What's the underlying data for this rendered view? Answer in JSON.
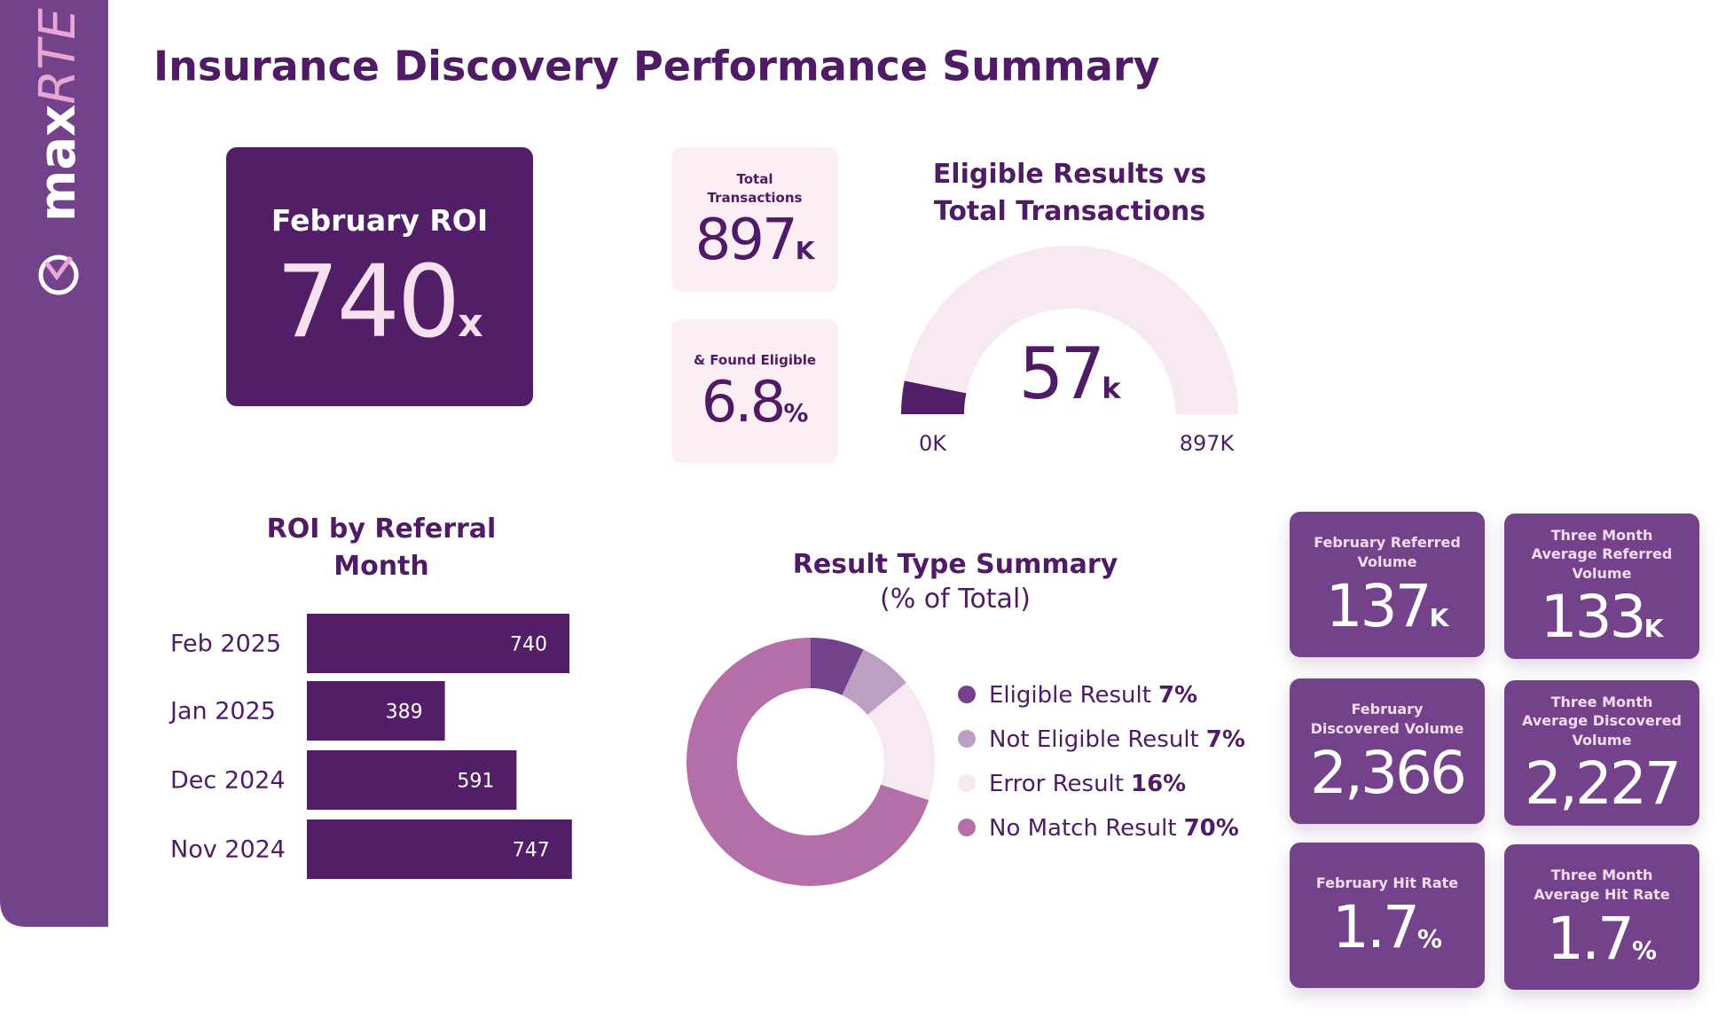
{
  "logo": {
    "brand": "max",
    "product": "RTE"
  },
  "title": "Insurance Discovery Performance Summary",
  "kpi_cards": [
    {
      "label": "February ROI",
      "value": "740",
      "unit": "x"
    },
    {
      "label": "Total Transactions",
      "value": "897",
      "unit": "K"
    },
    {
      "label": "& Found Eligible",
      "value": "6.8",
      "unit": "%"
    },
    {
      "label": "February Referred Volume",
      "value": "137",
      "unit": "K"
    },
    {
      "label": "Three Month Average Referred Volume",
      "value": "133",
      "unit": "K"
    },
    {
      "label": "February Discovered Volume",
      "value": "2,366"
    },
    {
      "label": "Three Month Average Discovered Volume",
      "value": "2,227"
    },
    {
      "label": "February Hit Rate",
      "value": "1.7",
      "unit": "%"
    },
    {
      "label": "Three Month Average Hit Rate",
      "value": "1.7",
      "unit": "%"
    }
  ],
  "chart_data": [
    {
      "type": "gauge",
      "title": "Eligible Results vs Total Transactions",
      "value": 57,
      "unit": "k",
      "color": "#521e68",
      "track_color": "#f7e8f2",
      "lim": [
        0,
        897
      ],
      "ticks": [
        {
          "value": 0,
          "label": "0K"
        },
        {
          "value": 897,
          "label": "897K"
        }
      ]
    },
    {
      "type": "hbar",
      "title": "ROI by Referral Month",
      "categories": [
        "Feb 2025",
        "Jan 2025",
        "Dec 2024",
        "Nov 2024"
      ],
      "values": [
        740,
        389,
        591,
        747
      ],
      "color": "#521e68",
      "xlim": [
        0,
        750
      ]
    },
    {
      "type": "donut",
      "title": "Result Type Summary",
      "subtitle": "(% of Total)",
      "categories": [
        "Eligible Result",
        "Not Eligible Result",
        "Error Result",
        "No Match Result"
      ],
      "values": [
        7,
        7,
        16,
        70
      ],
      "value_labels": [
        "7%",
        "7%",
        "16%",
        "70%"
      ],
      "colors": [
        "#74428a",
        "#bba0c4",
        "#f8e8f2",
        "#b56fa8"
      ]
    }
  ]
}
